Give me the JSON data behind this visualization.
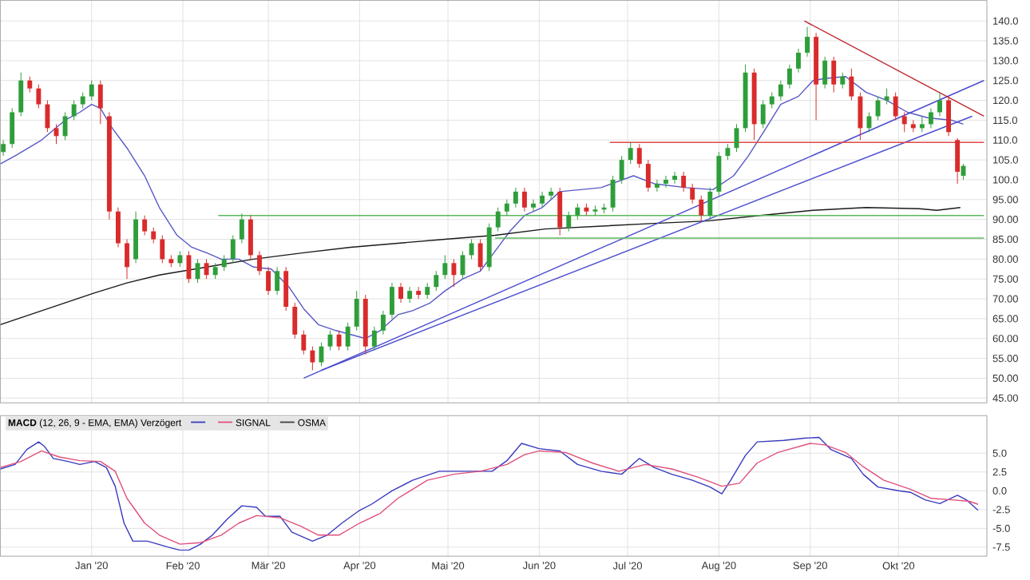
{
  "chart_data": [
    {
      "type": "candlestick",
      "x": [
        "2019-12-02",
        "2019-12-05",
        "2019-12-08",
        "2019-12-11",
        "2019-12-14",
        "2019-12-17",
        "2019-12-20",
        "2019-12-23",
        "2019-12-26",
        "2019-12-29",
        "2020-01-01",
        "2020-01-04",
        "2020-01-07",
        "2020-01-10",
        "2020-01-13",
        "2020-01-16",
        "2020-01-19",
        "2020-01-22",
        "2020-01-25",
        "2020-01-28",
        "2020-01-31",
        "2020-02-03",
        "2020-02-06",
        "2020-02-09",
        "2020-02-12",
        "2020-02-15",
        "2020-02-18",
        "2020-02-21",
        "2020-02-24",
        "2020-02-27",
        "2020-03-01",
        "2020-03-04",
        "2020-03-07",
        "2020-03-10",
        "2020-03-13",
        "2020-03-16",
        "2020-03-19",
        "2020-03-22",
        "2020-03-25",
        "2020-03-28",
        "2020-03-31",
        "2020-04-03",
        "2020-04-06",
        "2020-04-09",
        "2020-04-12",
        "2020-04-15",
        "2020-04-18",
        "2020-04-21",
        "2020-04-24",
        "2020-04-27",
        "2020-04-30",
        "2020-05-03",
        "2020-05-06",
        "2020-05-09",
        "2020-05-12",
        "2020-05-15",
        "2020-05-18",
        "2020-05-21",
        "2020-05-24",
        "2020-05-27",
        "2020-05-30",
        "2020-06-02",
        "2020-06-05",
        "2020-06-08",
        "2020-06-11",
        "2020-06-14",
        "2020-06-17",
        "2020-06-20",
        "2020-06-23",
        "2020-06-26",
        "2020-06-29",
        "2020-07-02",
        "2020-07-05",
        "2020-07-08",
        "2020-07-11",
        "2020-07-14",
        "2020-07-17",
        "2020-07-20",
        "2020-07-23",
        "2020-07-26",
        "2020-07-29",
        "2020-08-01",
        "2020-08-04",
        "2020-08-07",
        "2020-08-10",
        "2020-08-13",
        "2020-08-16",
        "2020-08-19",
        "2020-08-22",
        "2020-08-25",
        "2020-08-28",
        "2020-08-31",
        "2020-09-03",
        "2020-09-06",
        "2020-09-09",
        "2020-09-12",
        "2020-09-15",
        "2020-09-18",
        "2020-09-21",
        "2020-09-24",
        "2020-09-27",
        "2020-09-30",
        "2020-10-03",
        "2020-10-06",
        "2020-10-09",
        "2020-10-12",
        "2020-10-15",
        "2020-10-18",
        "2020-10-21",
        "2020-10-23"
      ],
      "ohlc": [
        [
          107,
          110,
          106,
          109
        ],
        [
          109,
          118,
          108,
          117
        ],
        [
          117,
          127,
          116,
          125
        ],
        [
          125,
          126,
          122,
          123
        ],
        [
          123,
          124,
          118,
          119
        ],
        [
          119,
          120,
          112,
          113
        ],
        [
          113,
          114,
          109,
          111
        ],
        [
          111,
          117,
          110,
          116
        ],
        [
          116,
          120,
          115,
          119
        ],
        [
          119,
          122,
          118,
          121
        ],
        [
          121,
          125,
          120,
          124
        ],
        [
          124,
          125,
          114,
          118
        ],
        [
          116,
          117,
          90,
          92
        ],
        [
          92,
          93,
          83,
          84
        ],
        [
          84,
          85,
          75,
          78
        ],
        [
          80,
          92,
          79,
          90
        ],
        [
          90,
          91,
          86,
          87
        ],
        [
          87,
          88,
          84,
          85
        ],
        [
          85,
          86,
          79,
          80
        ],
        [
          80,
          81,
          78,
          79
        ],
        [
          79,
          82,
          78,
          81
        ],
        [
          81,
          82,
          74,
          75
        ],
        [
          75,
          80,
          74,
          79
        ],
        [
          79,
          80,
          75,
          76
        ],
        [
          76,
          79,
          75,
          78
        ],
        [
          78,
          81,
          77,
          80
        ],
        [
          80,
          86,
          79,
          85
        ],
        [
          85,
          91.5,
          84,
          90
        ],
        [
          90,
          91,
          80,
          81
        ],
        [
          81,
          82,
          76,
          77
        ],
        [
          77,
          78,
          71,
          72
        ],
        [
          72,
          78,
          71,
          77
        ],
        [
          77,
          78,
          67,
          68
        ],
        [
          68,
          69,
          60,
          61
        ],
        [
          61,
          62,
          56,
          57
        ],
        [
          57,
          58,
          52,
          54
        ],
        [
          54,
          59,
          53,
          58
        ],
        [
          58,
          62,
          57,
          61
        ],
        [
          61,
          62,
          57,
          58
        ],
        [
          58,
          64,
          57,
          63
        ],
        [
          63,
          72,
          62,
          70
        ],
        [
          70,
          71,
          56,
          58
        ],
        [
          58,
          63,
          57,
          62
        ],
        [
          62,
          67,
          61,
          66
        ],
        [
          66,
          74,
          65,
          73
        ],
        [
          73,
          74,
          69,
          70
        ],
        [
          70,
          73,
          69,
          72
        ],
        [
          72,
          73,
          70,
          71
        ],
        [
          71,
          74,
          70,
          73
        ],
        [
          73,
          77,
          72,
          76
        ],
        [
          76,
          81,
          75,
          79
        ],
        [
          79,
          80,
          73,
          76
        ],
        [
          76,
          82,
          75,
          81
        ],
        [
          81,
          85,
          80,
          84
        ],
        [
          84,
          85,
          77,
          78
        ],
        [
          78,
          89,
          77,
          88
        ],
        [
          88,
          93,
          87,
          92
        ],
        [
          92,
          95,
          91,
          94
        ],
        [
          94,
          98,
          93,
          97
        ],
        [
          97,
          98,
          92,
          93
        ],
        [
          93,
          95,
          92,
          94
        ],
        [
          94,
          97,
          93,
          96
        ],
        [
          96,
          98,
          95,
          97
        ],
        [
          97,
          98,
          86,
          88
        ],
        [
          88,
          92,
          87,
          91
        ],
        [
          91,
          94,
          90,
          93
        ],
        [
          93,
          94,
          91,
          92
        ],
        [
          92,
          93.5,
          91,
          92.5
        ],
        [
          92.5,
          94,
          91.5,
          93
        ],
        [
          93,
          101,
          92,
          100
        ],
        [
          100,
          106,
          99,
          105
        ],
        [
          105,
          109.5,
          104,
          108
        ],
        [
          108,
          109,
          103,
          104
        ],
        [
          104,
          105,
          97,
          98
        ],
        [
          98,
          100,
          97,
          99
        ],
        [
          99,
          101,
          98,
          100
        ],
        [
          100,
          102,
          99,
          101
        ],
        [
          101,
          102,
          97,
          98
        ],
        [
          98,
          99,
          94,
          95
        ],
        [
          95,
          96,
          89.5,
          91
        ],
        [
          91,
          98,
          90,
          97
        ],
        [
          97,
          107,
          96,
          106
        ],
        [
          106,
          109,
          105,
          108
        ],
        [
          108,
          114,
          107,
          113
        ],
        [
          113,
          129,
          112,
          127
        ],
        [
          127,
          128,
          110,
          114
        ],
        [
          114,
          120,
          113,
          119
        ],
        [
          119,
          122,
          118,
          121
        ],
        [
          121,
          125,
          120,
          124
        ],
        [
          124,
          129,
          123,
          128
        ],
        [
          128,
          133,
          127,
          132
        ],
        [
          132,
          138.5,
          131,
          136
        ],
        [
          136,
          137,
          115,
          124
        ],
        [
          124,
          131,
          123,
          130
        ],
        [
          130,
          131,
          122,
          124
        ],
        [
          124,
          127,
          123,
          126
        ],
        [
          126,
          128,
          120,
          121
        ],
        [
          121,
          122,
          110,
          113
        ],
        [
          113,
          117,
          112,
          116
        ],
        [
          116,
          121,
          115,
          120
        ],
        [
          120,
          123,
          119,
          121
        ],
        [
          121,
          122,
          115,
          116
        ],
        [
          116,
          117,
          112,
          114
        ],
        [
          114,
          115,
          112,
          113
        ],
        [
          113,
          116,
          112,
          114
        ],
        [
          114,
          118,
          113,
          117
        ],
        [
          117,
          122,
          116,
          120
        ],
        [
          120,
          121,
          111,
          112
        ],
        [
          110,
          110.5,
          99,
          102
        ],
        [
          101,
          104,
          100,
          103.5
        ]
      ],
      "series": [
        {
          "type": "line",
          "color": "#5858c8",
          "x": [
            "2019-12-01",
            "2019-12-06",
            "2019-12-15",
            "2019-12-23",
            "2019-12-28",
            "2020-01-01",
            "2020-01-04",
            "2020-01-08",
            "2020-01-13",
            "2020-01-19",
            "2020-01-24",
            "2020-01-30",
            "2020-02-04",
            "2020-02-09",
            "2020-02-14",
            "2020-02-20",
            "2020-02-25",
            "2020-03-02",
            "2020-03-08",
            "2020-03-13",
            "2020-03-18",
            "2020-03-24",
            "2020-03-29",
            "2020-04-03",
            "2020-04-08",
            "2020-04-14",
            "2020-04-19",
            "2020-04-25",
            "2020-04-30",
            "2020-05-06",
            "2020-05-12",
            "2020-05-17",
            "2020-05-22",
            "2020-05-27",
            "2020-06-02",
            "2020-06-08",
            "2020-06-22",
            "2020-07-03",
            "2020-07-10",
            "2020-07-21",
            "2020-07-30",
            "2020-08-06",
            "2020-08-11",
            "2020-08-17",
            "2020-08-22",
            "2020-08-28",
            "2020-09-02",
            "2020-09-06",
            "2020-09-13",
            "2020-09-20",
            "2020-09-27",
            "2020-10-04",
            "2020-10-11",
            "2020-10-19",
            "2020-10-23"
          ],
          "values": [
            104,
            106,
            110,
            115,
            117,
            119,
            118,
            113,
            108,
            101,
            93,
            86,
            83,
            81.6,
            80,
            80,
            78,
            77.5,
            73,
            67.5,
            63.5,
            62,
            61,
            60,
            62,
            66,
            67,
            69,
            72,
            75,
            77,
            82,
            87,
            91,
            93,
            97,
            98,
            101,
            99,
            98,
            97.5,
            101,
            106,
            113,
            119,
            121,
            125,
            125.5,
            126,
            122,
            120,
            117,
            115.6,
            115,
            114
          ]
        },
        {
          "type": "line",
          "color": "#1a1a1a",
          "x": [
            "2019-12-01",
            "2019-12-17",
            "2020-01-02",
            "2020-01-13",
            "2020-01-24",
            "2020-02-09",
            "2020-02-25",
            "2020-03-13",
            "2020-03-29",
            "2020-04-14",
            "2020-04-30",
            "2020-05-17",
            "2020-06-03",
            "2020-07-10",
            "2020-07-28",
            "2020-08-15",
            "2020-09-02",
            "2020-09-20",
            "2020-10-08",
            "2020-10-14",
            "2020-10-22"
          ],
          "values": [
            63.5,
            67.5,
            71.5,
            74,
            76,
            78,
            80,
            81.6,
            83,
            84,
            85,
            86,
            87.6,
            89,
            89.6,
            91,
            92.3,
            93,
            92.7,
            92.3,
            93
          ]
        },
        {
          "type": "line",
          "color": "#4a4ad0",
          "x": [
            "2020-03-13",
            "2020-10-30"
          ],
          "values": [
            50,
            125
          ]
        },
        {
          "type": "line",
          "color": "#4a4ad0",
          "x": [
            "2020-03-19",
            "2020-10-26"
          ],
          "values": [
            52,
            116
          ]
        },
        {
          "type": "line",
          "color": "#c0282c",
          "x": [
            "2020-08-30",
            "2020-10-30"
          ],
          "values": [
            140,
            116
          ]
        },
        {
          "type": "line",
          "color": "#e04848",
          "x": [
            "2020-06-25",
            "2020-10-30"
          ],
          "values": [
            109.4,
            109.4
          ]
        },
        {
          "type": "line",
          "color": "#5cb85c",
          "x": [
            "2020-02-13",
            "2020-10-30"
          ],
          "values": [
            91,
            91
          ]
        },
        {
          "type": "line",
          "color": "#5cb85c",
          "x": [
            "2020-05-17",
            "2020-10-30"
          ],
          "values": [
            85.3,
            85.3
          ]
        }
      ],
      "xlim": [
        "2019-12-01",
        "2020-10-31"
      ],
      "ylim": [
        43.8,
        145.2
      ],
      "xticks": [
        {
          "value": "2020-01-01",
          "label": null
        },
        {
          "value": "2020-02-01",
          "label": null
        },
        {
          "value": "2020-03-01",
          "label": null
        },
        {
          "value": "2020-04-01",
          "label": null
        },
        {
          "value": "2020-05-01",
          "label": null
        },
        {
          "value": "2020-06-01",
          "label": null
        },
        {
          "value": "2020-07-01",
          "label": null
        },
        {
          "value": "2020-08-01",
          "label": null
        },
        {
          "value": "2020-09-01",
          "label": null
        },
        {
          "value": "2020-10-01",
          "label": null
        }
      ],
      "yticks": [
        {
          "value": 45,
          "label": "45.00"
        },
        {
          "value": 50,
          "label": "50.00"
        },
        {
          "value": 55,
          "label": "55.00"
        },
        {
          "value": 60,
          "label": "60.00"
        },
        {
          "value": 65,
          "label": "65.00"
        },
        {
          "value": 70,
          "label": "70.00"
        },
        {
          "value": 75,
          "label": "75.00"
        },
        {
          "value": 80,
          "label": "80.00"
        },
        {
          "value": 85,
          "label": "85.00"
        },
        {
          "value": 90,
          "label": "90.00"
        },
        {
          "value": 95,
          "label": "95.00"
        },
        {
          "value": 100,
          "label": "100.0"
        },
        {
          "value": 105,
          "label": "105.0"
        },
        {
          "value": 110,
          "label": "110.0"
        },
        {
          "value": 115,
          "label": "115.0"
        },
        {
          "value": 120,
          "label": "120.0"
        },
        {
          "value": 125,
          "label": "125.0"
        },
        {
          "value": 130,
          "label": "130.0"
        },
        {
          "value": 135,
          "label": "135.0"
        },
        {
          "value": 140,
          "label": "140.0"
        }
      ],
      "grid": true,
      "tick_labels": "y"
    },
    {
      "type": "line",
      "legend_title": "**MACD** (12, 26, 9 - EMA, EMA) Verzögert",
      "legend": "top left",
      "series": [
        {
          "color": "#3a3ac0",
          "x": [
            "2019-12-01",
            "2019-12-06",
            "2019-12-10",
            "2019-12-14",
            "2019-12-16",
            "2019-12-19",
            "2019-12-24",
            "2019-12-28",
            "2020-01-02",
            "2020-01-06",
            "2020-01-09",
            "2020-01-12",
            "2020-01-15",
            "2020-01-20",
            "2020-01-27",
            "2020-01-31",
            "2020-02-03",
            "2020-02-07",
            "2020-02-11",
            "2020-02-16",
            "2020-02-21",
            "2020-02-26",
            "2020-02-29",
            "2020-03-05",
            "2020-03-09",
            "2020-03-16",
            "2020-03-21",
            "2020-03-26",
            "2020-04-01",
            "2020-04-05",
            "2020-04-12",
            "2020-04-19",
            "2020-04-28",
            "2020-05-07",
            "2020-05-16",
            "2020-05-21",
            "2020-05-26",
            "2020-06-01",
            "2020-06-08",
            "2020-06-14",
            "2020-06-22",
            "2020-06-29",
            "2020-07-05",
            "2020-07-10",
            "2020-07-16",
            "2020-07-23",
            "2020-07-29",
            "2020-08-02",
            "2020-08-05",
            "2020-08-10",
            "2020-08-14",
            "2020-08-23",
            "2020-08-30",
            "2020-09-04",
            "2020-09-08",
            "2020-09-15",
            "2020-09-19",
            "2020-09-24",
            "2020-10-01",
            "2020-10-05",
            "2020-10-10",
            "2020-10-15",
            "2020-10-21",
            "2020-10-24",
            "2020-10-28"
          ],
          "values": [
            2.9,
            3.5,
            5.5,
            6.5,
            5.9,
            4.3,
            3.9,
            3.5,
            3.9,
            3.1,
            0.6,
            -4.3,
            -6.7,
            -6.7,
            -7.5,
            -7.9,
            -7.9,
            -7.1,
            -5.9,
            -3.8,
            -2.0,
            -2.2,
            -3.4,
            -3.4,
            -5.5,
            -6.7,
            -5.9,
            -4.3,
            -2.6,
            -1.8,
            0,
            1.4,
            2.6,
            2.6,
            2.6,
            4.0,
            6.3,
            5.6,
            5.3,
            3.5,
            2.6,
            2.2,
            4.3,
            3.1,
            2.2,
            1.4,
            0.5,
            -0.4,
            1.4,
            4.7,
            6.5,
            6.7,
            7.0,
            7.1,
            5.5,
            4.3,
            2.2,
            0.5,
            0,
            -0.2,
            -1.2,
            -1.7,
            -0.6,
            -1.2,
            -2.6
          ]
        },
        {
          "name": "SIGNAL",
          "color": "#e0507a",
          "x": [
            "2019-12-01",
            "2019-12-08",
            "2019-12-15",
            "2019-12-21",
            "2019-12-28",
            "2020-01-04",
            "2020-01-09",
            "2020-01-13",
            "2020-01-19",
            "2020-01-24",
            "2020-01-31",
            "2020-02-07",
            "2020-02-14",
            "2020-02-20",
            "2020-02-26",
            "2020-03-05",
            "2020-03-12",
            "2020-03-18",
            "2020-03-25",
            "2020-04-01",
            "2020-04-08",
            "2020-04-14",
            "2020-04-24",
            "2020-05-03",
            "2020-05-12",
            "2020-05-21",
            "2020-05-27",
            "2020-06-01",
            "2020-06-10",
            "2020-06-19",
            "2020-06-28",
            "2020-07-07",
            "2020-07-16",
            "2020-07-25",
            "2020-08-02",
            "2020-08-08",
            "2020-08-14",
            "2020-08-21",
            "2020-09-01",
            "2020-09-06",
            "2020-09-13",
            "2020-09-19",
            "2020-09-26",
            "2020-10-05",
            "2020-10-12",
            "2020-10-19",
            "2020-10-25",
            "2020-10-28"
          ],
          "values": [
            3.1,
            3.9,
            5.3,
            4.5,
            4.0,
            3.9,
            2.6,
            -1.0,
            -4.3,
            -5.9,
            -7.1,
            -6.9,
            -5.9,
            -4.3,
            -3.3,
            -3.6,
            -4.7,
            -5.9,
            -5.9,
            -4.3,
            -3.0,
            -1.0,
            1.4,
            2.2,
            2.6,
            3.5,
            4.8,
            5.3,
            5.1,
            3.7,
            2.6,
            3.5,
            2.9,
            1.8,
            0.6,
            1.0,
            3.7,
            5.1,
            6.3,
            6.1,
            5.1,
            3.2,
            1.4,
            0.2,
            -1.0,
            -1.2,
            -1.4,
            -1.8
          ]
        },
        {
          "name": "OSMA",
          "color": "#404040"
        }
      ],
      "xlim": [
        "2019-12-01",
        "2020-10-31"
      ],
      "ylim": [
        -8.7,
        10
      ],
      "xticks": [
        {
          "value": "2020-01-01",
          "label": "Jan '20"
        },
        {
          "value": "2020-02-01",
          "label": "Feb '20"
        },
        {
          "value": "2020-03-01",
          "label": "Mär '20"
        },
        {
          "value": "2020-04-01",
          "label": "Apr '20"
        },
        {
          "value": "2020-05-01",
          "label": "Mai '20"
        },
        {
          "value": "2020-06-01",
          "label": "Jun '20"
        },
        {
          "value": "2020-07-01",
          "label": "Jul '20"
        },
        {
          "value": "2020-08-01",
          "label": "Aug '20"
        },
        {
          "value": "2020-09-01",
          "label": "Sep '20"
        },
        {
          "value": "2020-10-01",
          "label": "Okt '20"
        }
      ],
      "yticks": [
        {
          "value": -7.5,
          "label": "-7.5"
        },
        {
          "value": -5,
          "label": "-5.0"
        },
        {
          "value": -2.5,
          "label": "-2.5"
        },
        {
          "value": 0,
          "label": "0.0"
        },
        {
          "value": 2.5,
          "label": "2.5"
        },
        {
          "value": 5,
          "label": "5.0"
        }
      ],
      "grid": true
    }
  ]
}
